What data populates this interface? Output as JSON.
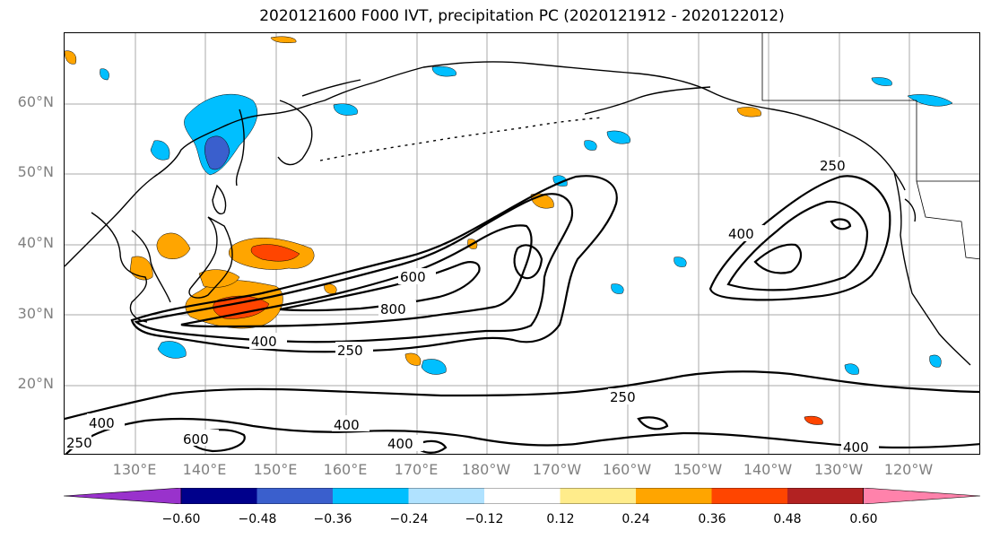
{
  "title": "2020121600 F000 IVT, precipitation PC (2020121912 - 2020122012)",
  "lat_labels": [
    "60°N",
    "50°N",
    "40°N",
    "30°N",
    "20°N"
  ],
  "lon_labels": [
    "130°E",
    "140°E",
    "150°E",
    "160°E",
    "170°E",
    "180°W",
    "170°W",
    "160°W",
    "150°W",
    "140°W",
    "130°W",
    "120°W"
  ],
  "contour_labels": [
    "600",
    "800",
    "400",
    "250",
    "400",
    "250",
    "400",
    "600",
    "400",
    "250",
    "400",
    "400",
    "250"
  ],
  "colorbar": {
    "ticks": [
      "−0.60",
      "−0.48",
      "−0.36",
      "−0.24",
      "−0.12",
      "0.12",
      "0.24",
      "0.36",
      "0.48",
      "0.60"
    ],
    "colors": [
      "#9932cc",
      "#00008b",
      "#3a5fcd",
      "#00bfff",
      "#b0e2ff",
      "#ffffff",
      "#ffec8b",
      "#ffa500",
      "#ff4500",
      "#b22222",
      "#ff82ab"
    ]
  }
}
